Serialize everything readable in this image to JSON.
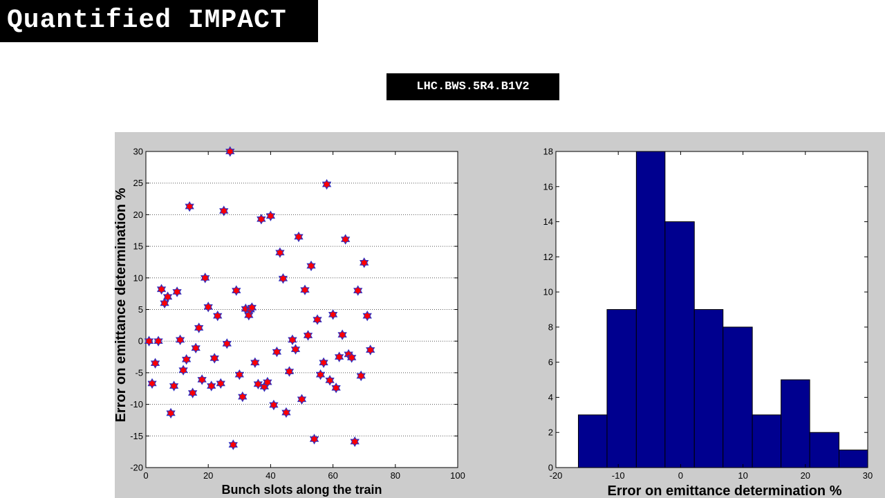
{
  "slide": {
    "title": "Quantified IMPACT",
    "device_label": "LHC.BWS.5R4.B1V2"
  },
  "chart_data": [
    {
      "type": "scatter",
      "xlabel": "Bunch slots along the train",
      "ylabel": "Error on emittance determination %",
      "xlim": [
        0,
        100
      ],
      "ylim": [
        -20,
        30
      ],
      "xticks": [
        0,
        20,
        40,
        60,
        80,
        100
      ],
      "yticks": [
        -20,
        -15,
        -10,
        -5,
        0,
        5,
        10,
        15,
        20,
        25,
        30
      ],
      "grid": "horizontal dotted",
      "marker": "hexagram",
      "marker_face": "#ff0000",
      "marker_edge": "#3030c0",
      "x": [
        1,
        2,
        3,
        4,
        5,
        6,
        7,
        8,
        9,
        10,
        11,
        12,
        13,
        14,
        15,
        16,
        17,
        18,
        19,
        20,
        21,
        22,
        23,
        24,
        25,
        26,
        27,
        28,
        29,
        30,
        31,
        32,
        33,
        33.5,
        34,
        35,
        36,
        37,
        38,
        39,
        40,
        41,
        42,
        43,
        44,
        45,
        46,
        47,
        48,
        49,
        50,
        51,
        52,
        53,
        54,
        55,
        56,
        57,
        58,
        59,
        60,
        61,
        62,
        63,
        64,
        65,
        66,
        67,
        68,
        69,
        70,
        71,
        72
      ],
      "y": [
        0,
        -6.7,
        -3.5,
        0,
        8.2,
        6,
        7,
        -11.4,
        -7.1,
        7.8,
        0.2,
        -4.6,
        -2.9,
        21.3,
        -8.2,
        -1.1,
        2.1,
        -6.1,
        10,
        5.4,
        -7.1,
        -2.7,
        4,
        -6.7,
        20.6,
        -0.4,
        30,
        -16.4,
        8,
        -5.3,
        -8.8,
        5.1,
        4.1,
        5,
        5.3,
        -3.4,
        -6.8,
        19.3,
        -7.2,
        -6.5,
        19.8,
        -10.1,
        -1.7,
        14,
        9.9,
        -11.3,
        -4.8,
        0.2,
        -1.3,
        16.5,
        -9.2,
        8.1,
        0.9,
        11.9,
        -15.5,
        3.4,
        -5.3,
        -3.4,
        24.8,
        -6.2,
        4.2,
        -7.4,
        -2.5,
        1,
        16.1,
        -2.1,
        -2.6,
        -15.9,
        8,
        -5.5,
        12.4,
        4,
        -1.4
      ]
    },
    {
      "type": "bar",
      "xlabel": "Error on emittance determination %",
      "ylabel": "",
      "xlim": [
        -20,
        30
      ],
      "ylim": [
        0,
        18
      ],
      "xticks": [
        -20,
        -10,
        0,
        10,
        20,
        30
      ],
      "yticks": [
        0,
        2,
        4,
        6,
        8,
        10,
        12,
        14,
        16,
        18
      ],
      "bin_edges": [
        -16.4,
        -11.8,
        -7.1,
        -2.5,
        2.2,
        6.8,
        11.5,
        16.1,
        20.7,
        25.4,
        30
      ],
      "values": [
        3,
        9,
        18,
        14,
        9,
        8,
        3,
        5,
        2,
        1
      ],
      "bar_color": "#00008f"
    }
  ]
}
